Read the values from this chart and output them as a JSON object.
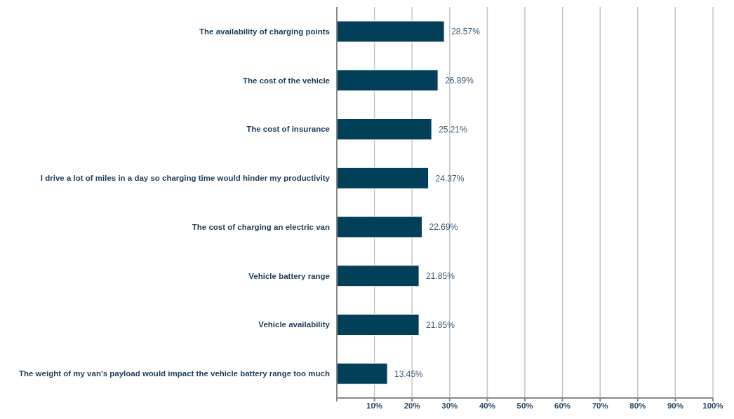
{
  "chart_data": {
    "type": "bar",
    "orientation": "horizontal",
    "categories": [
      "The availability of charging points",
      "The cost of the vehicle",
      "The cost of insurance",
      "I drive a lot of miles in a day so charging time would hinder my productivity",
      "The cost of charging an electric van",
      "Vehicle battery range",
      "Vehicle availability",
      "The weight of my van's payload would impact the vehicle battery range too much"
    ],
    "values": [
      28.57,
      26.89,
      25.21,
      24.37,
      22.69,
      21.85,
      21.85,
      13.45
    ],
    "value_labels": [
      "28.57%",
      "26.89%",
      "25.21%",
      "24.37%",
      "22.69%",
      "21.85%",
      "21.85%",
      "13.45%"
    ],
    "color": "#023f58",
    "xlim": [
      0,
      100
    ],
    "xticks": [
      {
        "value": 0,
        "label": null
      },
      {
        "value": 10,
        "label": "10%"
      },
      {
        "value": 20,
        "label": "20%"
      },
      {
        "value": 30,
        "label": "30%"
      },
      {
        "value": 40,
        "label": "40%"
      },
      {
        "value": 50,
        "label": "50%"
      },
      {
        "value": 60,
        "label": "60%"
      },
      {
        "value": 70,
        "label": "70%"
      },
      {
        "value": 80,
        "label": "80%"
      },
      {
        "value": 90,
        "label": "90%"
      },
      {
        "value": 100,
        "label": "100%"
      }
    ],
    "grid": "x",
    "legend": false
  }
}
